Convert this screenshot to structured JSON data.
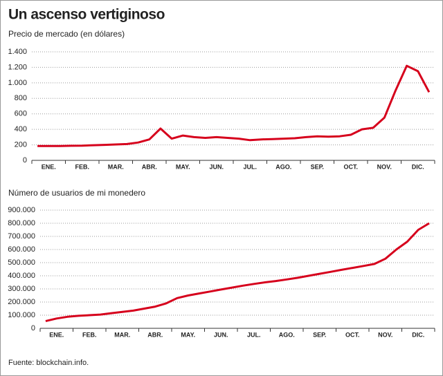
{
  "header": {
    "title": "Un ascenso vertiginoso"
  },
  "source": "Fuente: blockchain.info.",
  "chart_data": [
    {
      "type": "line",
      "title": "Precio de mercado (en dólares)",
      "categories": [
        null,
        "ENE.",
        null,
        null,
        "FEB.",
        null,
        null,
        "MAR.",
        null,
        null,
        "ABR.",
        null,
        null,
        "MAY.",
        null,
        null,
        "JUN.",
        null,
        null,
        "JUL.",
        null,
        null,
        "AGO.",
        null,
        null,
        "SEP.",
        null,
        null,
        "OCT.",
        null,
        null,
        "NOV.",
        null,
        null,
        "DIC.",
        null
      ],
      "series": [
        {
          "color": "#d6001c",
          "values": [
            185,
            185,
            185,
            188,
            190,
            195,
            200,
            205,
            210,
            230,
            270,
            410,
            280,
            320,
            300,
            290,
            300,
            290,
            280,
            260,
            270,
            275,
            280,
            285,
            300,
            310,
            305,
            310,
            330,
            400,
            420,
            550,
            900,
            1220,
            1150,
            880
          ]
        }
      ],
      "ylim": [
        0,
        1400
      ],
      "yticks": [
        0,
        200,
        400,
        600,
        800,
        {
          "value": 1000,
          "label": "1.000"
        },
        {
          "value": 1200,
          "label": "1.200"
        },
        {
          "value": 1400,
          "label": "1.400"
        }
      ],
      "grid": true
    },
    {
      "type": "line",
      "title": "Número de usuarios de mi monedero",
      "categories": [
        null,
        "ENE.",
        null,
        null,
        "FEB.",
        null,
        null,
        "MAR.",
        null,
        null,
        "ABR.",
        null,
        null,
        "MAY.",
        null,
        null,
        "JUN.",
        null,
        null,
        "JUL.",
        null,
        null,
        "AGO.",
        null,
        null,
        "SEP.",
        null,
        null,
        "OCT.",
        null,
        null,
        "NOV.",
        null,
        null,
        "DIC.",
        null
      ],
      "series": [
        {
          "color": "#d6001c",
          "values": [
            55000,
            75000,
            88000,
            95000,
            100000,
            105000,
            115000,
            125000,
            135000,
            150000,
            165000,
            190000,
            230000,
            250000,
            265000,
            280000,
            295000,
            310000,
            325000,
            338000,
            350000,
            360000,
            372000,
            385000,
            400000,
            415000,
            430000,
            445000,
            460000,
            475000,
            490000,
            530000,
            600000,
            660000,
            750000,
            800000
          ]
        }
      ],
      "ylim": [
        0,
        900000
      ],
      "yticks": [
        0,
        {
          "value": 100000,
          "label": "100.000"
        },
        {
          "value": 200000,
          "label": "200.000"
        },
        {
          "value": 300000,
          "label": "300.000"
        },
        {
          "value": 400000,
          "label": "400.000"
        },
        {
          "value": 500000,
          "label": "500.000"
        },
        {
          "value": 600000,
          "label": "600.000"
        },
        {
          "value": 700000,
          "label": "700.000"
        },
        {
          "value": 800000,
          "label": "800.000"
        },
        {
          "value": 900000,
          "label": "900.000"
        }
      ],
      "grid": true
    }
  ]
}
